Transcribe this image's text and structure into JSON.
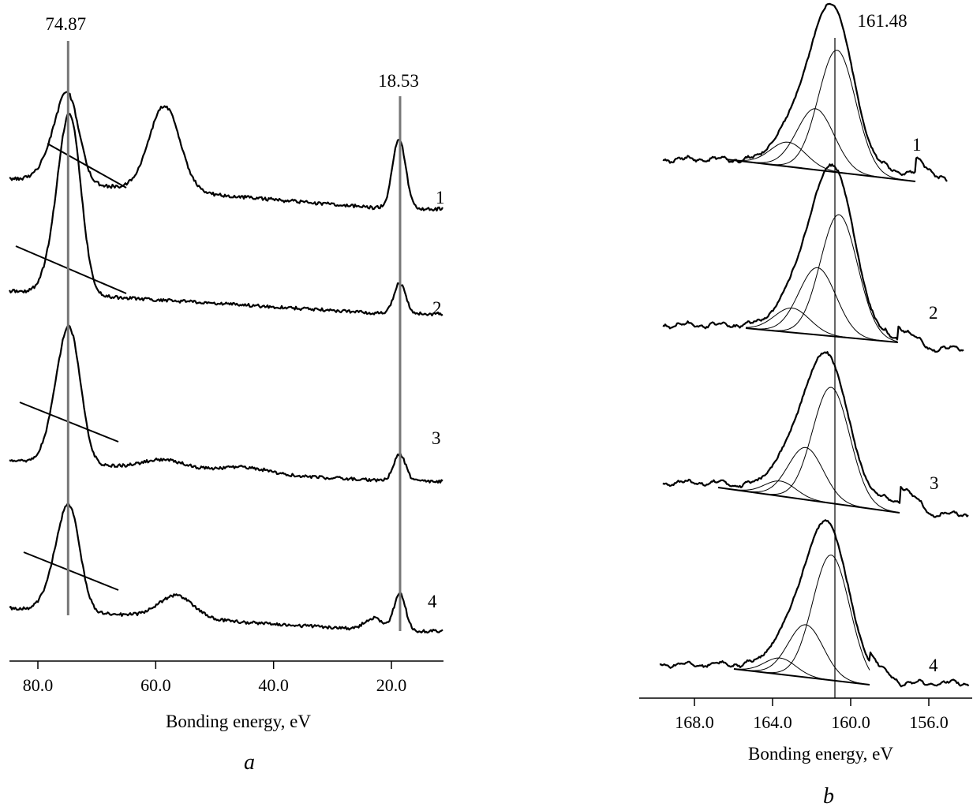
{
  "chart_data": [
    {
      "panel": "a",
      "type": "line",
      "panel_label": "a",
      "xlabel": "Bonding energy, eV",
      "xlim": [
        90.0,
        10.0
      ],
      "x_reversed": true,
      "xticks": [
        80.0,
        60.0,
        40.0,
        20.0
      ],
      "xtick_labels": [
        "80.0",
        "60.0",
        "40.0",
        "20.0"
      ],
      "reference_lines": [
        {
          "x": 74.87,
          "label": "74.87"
        },
        {
          "x": 18.53,
          "label": "18.53"
        }
      ],
      "series": [
        {
          "name": "1",
          "peaks": [
            {
              "x": 76.5,
              "amp": 0.55,
              "w": 2.3
            },
            {
              "x": 74.6,
              "amp": 0.85,
              "w": 1.8
            },
            {
              "x": 58.5,
              "amp": 1.2,
              "w": 2.6
            },
            {
              "x": 18.7,
              "amp": 1.0,
              "w": 1.1
            }
          ]
        },
        {
          "name": "2",
          "peaks": [
            {
              "x": 76.3,
              "amp": 0.6,
              "w": 2.0
            },
            {
              "x": 74.3,
              "amp": 1.55,
              "w": 1.8
            },
            {
              "x": 18.6,
              "amp": 0.33,
              "w": 1.0
            }
          ]
        },
        {
          "name": "3",
          "peaks": [
            {
              "x": 76.3,
              "amp": 0.65,
              "w": 2.0
            },
            {
              "x": 74.3,
              "amp": 1.3,
              "w": 1.8
            },
            {
              "x": 58.5,
              "amp": 0.12,
              "w": 3.5
            },
            {
              "x": 45.0,
              "amp": 0.08,
              "w": 4.0
            },
            {
              "x": 18.6,
              "amp": 0.35,
              "w": 1.0
            }
          ]
        },
        {
          "name": "4",
          "peaks": [
            {
              "x": 76.3,
              "amp": 0.7,
              "w": 2.0
            },
            {
              "x": 74.3,
              "amp": 1.1,
              "w": 1.7
            },
            {
              "x": 56.5,
              "amp": 0.33,
              "w": 3.0
            },
            {
              "x": 23.0,
              "amp": 0.18,
              "w": 1.5
            },
            {
              "x": 18.6,
              "amp": 0.55,
              "w": 1.0
            }
          ]
        }
      ]
    },
    {
      "panel": "b",
      "type": "line",
      "panel_label": "b",
      "xlabel": "Bonding energy, eV",
      "xlim": [
        171.0,
        155.0
      ],
      "x_reversed": true,
      "xticks": [
        168.0,
        164.0,
        160.0,
        156.0
      ],
      "xtick_labels": [
        "168.0",
        "164.0",
        "160.0",
        "156.0"
      ],
      "reference_lines": [
        {
          "x": 161.48,
          "label": "161.48"
        }
      ],
      "series": [
        {
          "name": "1",
          "components": [
            {
              "x": 160.7,
              "amp": 1.0,
              "w": 0.95
            },
            {
              "x": 161.8,
              "amp": 0.5,
              "w": 0.95
            },
            {
              "x": 163.2,
              "amp": 0.2,
              "w": 0.9
            }
          ]
        },
        {
          "name": "2",
          "components": [
            {
              "x": 160.6,
              "amp": 1.0,
              "w": 0.95
            },
            {
              "x": 161.7,
              "amp": 0.55,
              "w": 0.95
            },
            {
              "x": 163.0,
              "amp": 0.2,
              "w": 0.9
            }
          ]
        },
        {
          "name": "3",
          "components": [
            {
              "x": 161.0,
              "amp": 1.0,
              "w": 0.95
            },
            {
              "x": 162.3,
              "amp": 0.45,
              "w": 0.9
            },
            {
              "x": 163.6,
              "amp": 0.13,
              "w": 0.8
            }
          ]
        },
        {
          "name": "4",
          "components": [
            {
              "x": 161.0,
              "amp": 1.0,
              "w": 0.95
            },
            {
              "x": 162.3,
              "amp": 0.42,
              "w": 0.9
            },
            {
              "x": 163.6,
              "amp": 0.13,
              "w": 0.8
            }
          ]
        }
      ]
    }
  ]
}
